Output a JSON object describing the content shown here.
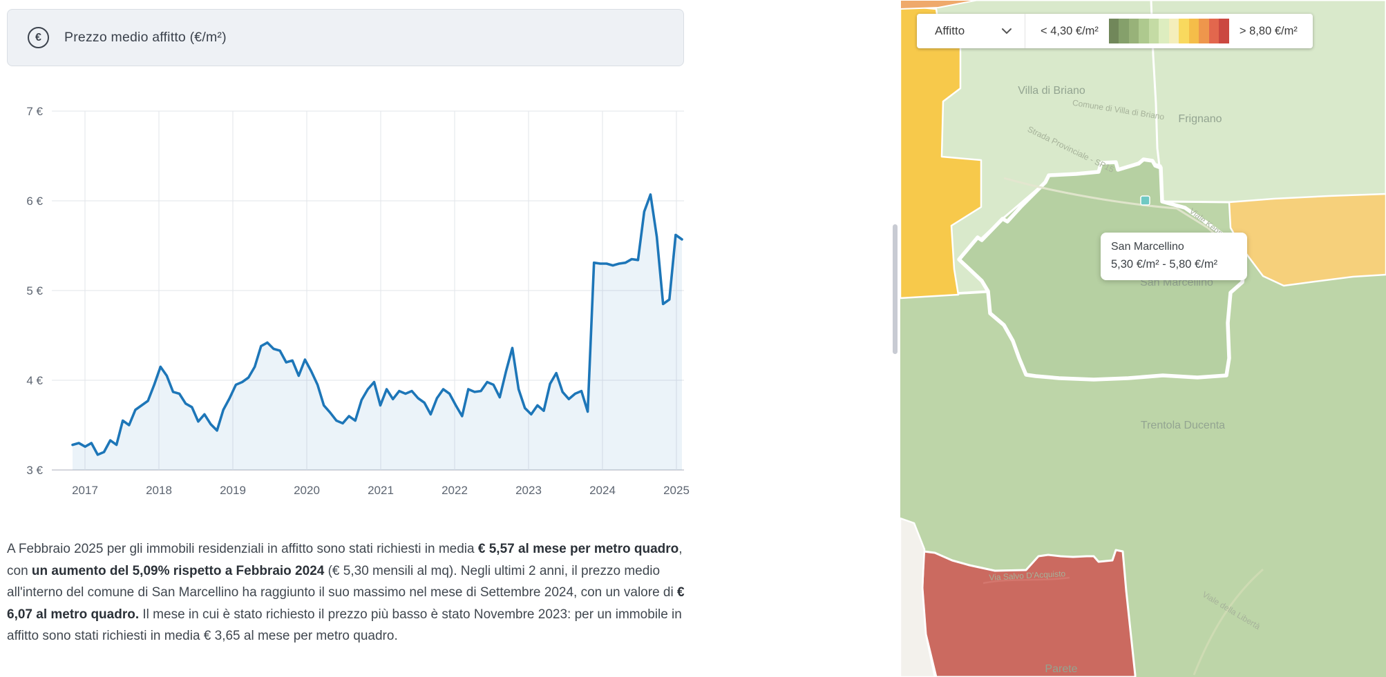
{
  "card": {
    "header": {
      "title": "Prezzo medio affitto (€/m²)"
    },
    "description_segments": [
      {
        "text": "A Febbraio 2025 per gli immobili residenziali in affitto sono stati richiesti in media ",
        "bold": false
      },
      {
        "text": "€ 5,57 al mese per metro quadro",
        "bold": true
      },
      {
        "text": ", con ",
        "bold": false
      },
      {
        "text": "un aumento del 5,09% rispetto a Febbraio 2024",
        "bold": true
      },
      {
        "text": " (€ 5,30 mensili al mq). Negli ultimi 2 anni, il prezzo medio all'interno del comune di San Marcellino ha raggiunto il suo massimo nel mese di Settembre 2024, con un valore di ",
        "bold": false
      },
      {
        "text": "€ 6,07 al metro quadro.",
        "bold": true
      },
      {
        "text": " Il mese in cui è stato richiesto il prezzo più basso è stato Novembre 2023: per un immobile in affitto sono stati richiesti in media € 3,65 al mese per metro quadro.",
        "bold": false
      }
    ]
  },
  "chart_data": {
    "type": "area",
    "title": "Prezzo medio affitto (€/m²)",
    "ylabel": "€/m²",
    "ylim": [
      3,
      7
    ],
    "y_ticks": [
      {
        "label": "7 €",
        "value": 7
      },
      {
        "label": "6 €",
        "value": 6
      },
      {
        "label": "5 €",
        "value": 5
      },
      {
        "label": "4 €",
        "value": 4
      },
      {
        "label": "3 €",
        "value": 3
      }
    ],
    "x_years": [
      "2017",
      "2018",
      "2019",
      "2020",
      "2021",
      "2022",
      "2023",
      "2024",
      "2025"
    ],
    "x_start": "2017-01",
    "x_end": "2025-02",
    "monthly_values": [
      3.28,
      3.3,
      3.26,
      3.3,
      3.17,
      3.2,
      3.33,
      3.28,
      3.55,
      3.5,
      3.67,
      3.72,
      3.77,
      3.95,
      4.15,
      4.05,
      3.87,
      3.85,
      3.74,
      3.7,
      3.54,
      3.62,
      3.51,
      3.44,
      3.67,
      3.8,
      3.95,
      3.98,
      4.03,
      4.15,
      4.38,
      4.42,
      4.35,
      4.33,
      4.2,
      4.22,
      4.05,
      4.23,
      4.1,
      3.95,
      3.72,
      3.64,
      3.55,
      3.52,
      3.6,
      3.55,
      3.78,
      3.9,
      3.98,
      3.72,
      3.9,
      3.79,
      3.88,
      3.85,
      3.88,
      3.8,
      3.75,
      3.62,
      3.8,
      3.9,
      3.85,
      3.72,
      3.6,
      3.9,
      3.87,
      3.88,
      3.98,
      3.95,
      3.81,
      4.1,
      4.36,
      3.9,
      3.69,
      3.62,
      3.72,
      3.66,
      3.96,
      4.08,
      3.87,
      3.79,
      3.85,
      3.88,
      3.65,
      5.31,
      5.3,
      5.3,
      5.28,
      5.3,
      5.31,
      5.35,
      5.34,
      5.88,
      6.07,
      5.6,
      4.85,
      4.9,
      5.62,
      5.57
    ],
    "highlights": {
      "max": {
        "month": "Settembre 2024",
        "value": 6.07
      },
      "min": {
        "month": "Novembre 2023",
        "value": 3.65
      },
      "latest": {
        "month": "Febbraio 2025",
        "value": 5.57
      }
    },
    "line_color": "#1d76b8",
    "grid": true
  },
  "map": {
    "dropdown": {
      "value": "Affitto"
    },
    "legend": {
      "min": "< 4,30 €/m²",
      "max": "> 8,80 €/m²",
      "swatches": [
        "#71875a",
        "#85a06b",
        "#98b279",
        "#aec98e",
        "#c4dba4",
        "#ddedbf",
        "#f4eebb",
        "#f9d95e",
        "#f5bd49",
        "#ee964c",
        "#e2674d",
        "#cb4840"
      ]
    },
    "tooltip": {
      "title": "San Marcellino",
      "value": "5,30 €/m² - 5,80 €/m²"
    },
    "labels": {
      "villa_di_briano": "Villa di Briano",
      "frignano": "Frignano",
      "san_marcellino": "San Marcellino",
      "trentola_ducenta": "Trentola Ducenta",
      "parete": "Parete"
    },
    "road_labels": {
      "comune": "Comune di Villa di Briano",
      "sp15": "Strada Provinciale - SP15",
      "kennedy": "Viale Kennedy",
      "salvo": "Via Salvo D'Acquisto",
      "liberta": "Viale della Libertà"
    },
    "region_colors": {
      "selected_green": "#b6d0a2",
      "light_green": "#d9e9cb",
      "mid_green": "#bdd5a8",
      "yellow_left": "#f7c94b",
      "yellow_right": "#f6d07b",
      "red": "#cb6a60",
      "orange": "#efa96b",
      "no_data": "#f3f1ec"
    }
  }
}
